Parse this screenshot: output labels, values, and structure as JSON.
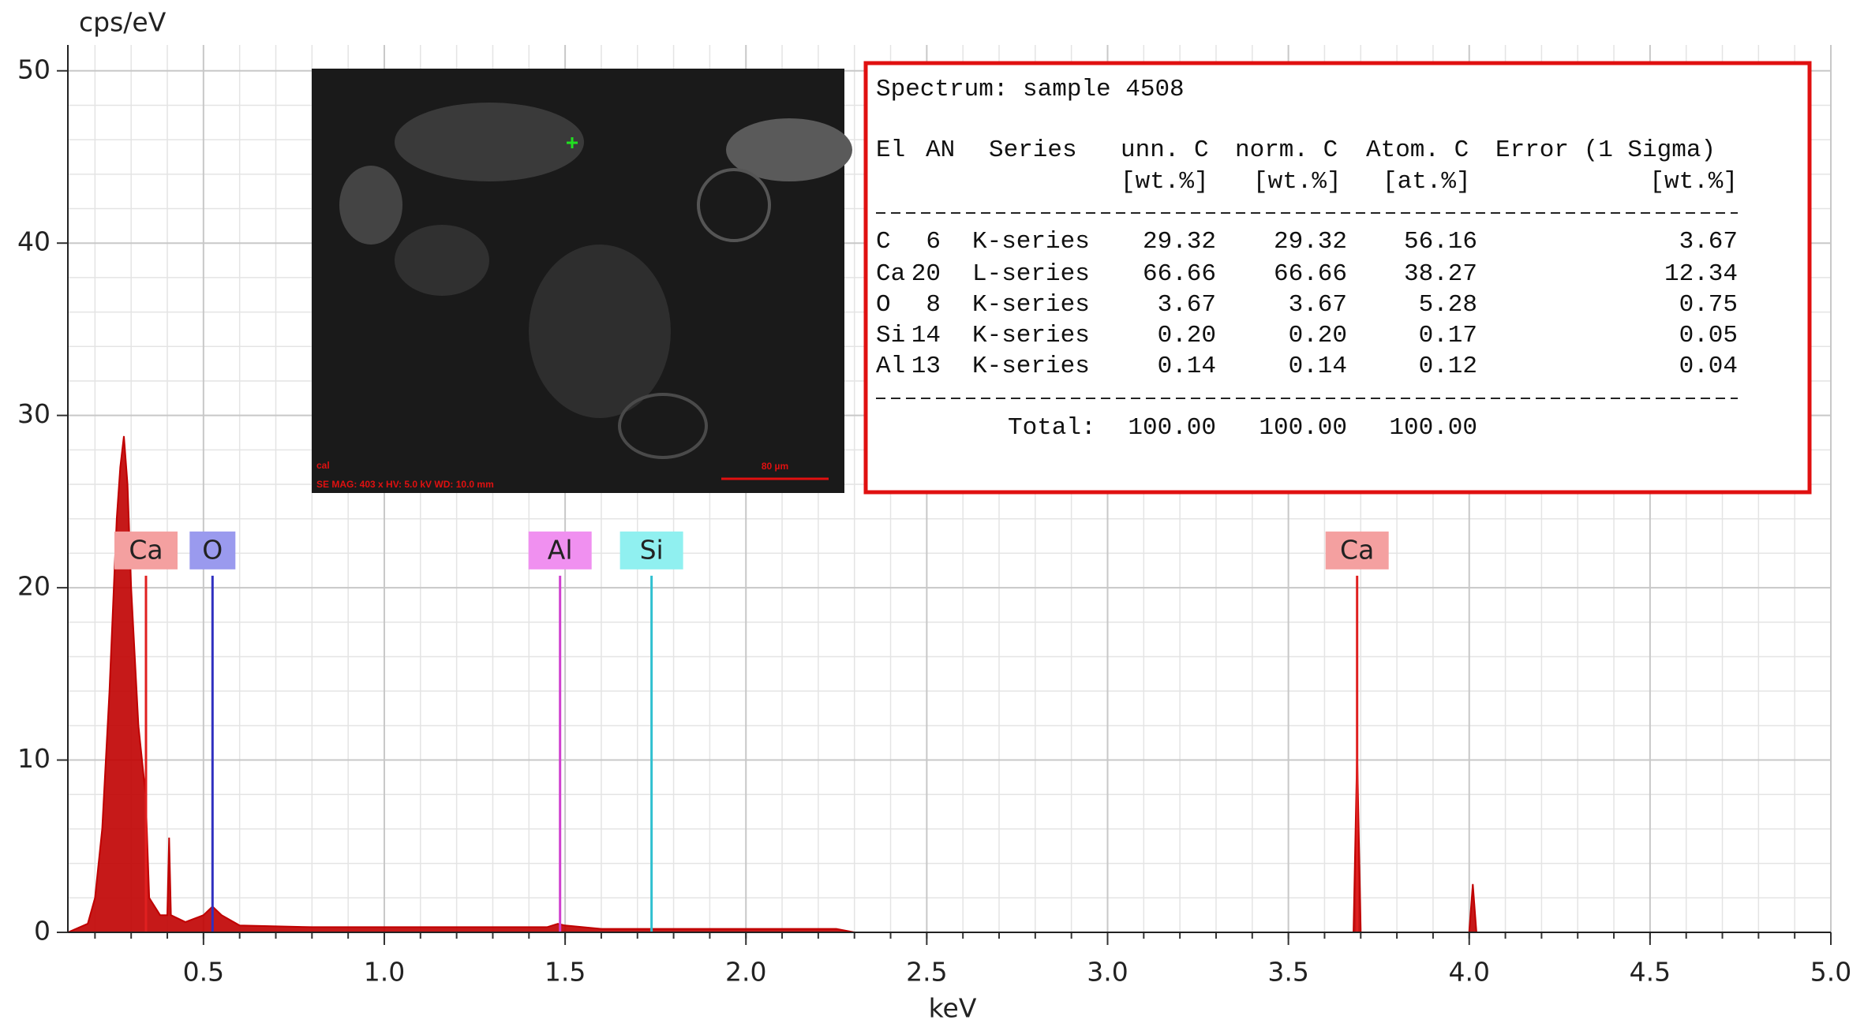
{
  "chart_data": {
    "type": "spectrum",
    "ylabel": "cps/eV",
    "xlabel": "keV",
    "xlim": [
      0.125,
      5.0
    ],
    "ylim": [
      0,
      51.5
    ],
    "xticks": [
      0.5,
      {
        "value": 1,
        "label": "1.0"
      },
      1.5,
      {
        "value": 2,
        "label": "2.0"
      },
      2.5,
      {
        "value": 3,
        "label": "3.0"
      },
      3.5,
      {
        "value": 4,
        "label": "4.0"
      },
      4.5,
      {
        "value": 5,
        "label": "5.0"
      }
    ],
    "yticks": [
      0,
      10,
      20,
      30,
      40,
      50
    ],
    "grid": true,
    "color": "#c00000",
    "x": [
      0.125,
      0.18,
      0.2,
      0.22,
      0.24,
      0.26,
      0.27,
      0.28,
      0.29,
      0.3,
      0.32,
      0.34,
      0.35,
      0.38,
      0.4,
      0.405,
      0.41,
      0.45,
      0.5,
      0.525,
      0.55,
      0.6,
      0.8,
      1.0,
      1.2,
      1.45,
      1.48,
      1.5,
      1.6,
      1.87,
      2.0,
      2.25,
      2.3,
      3.68,
      3.69,
      3.7,
      4.0,
      4.01,
      4.02,
      5.0
    ],
    "values": [
      0,
      0.5,
      2,
      6,
      14,
      24,
      27,
      28.8,
      26,
      20,
      12,
      8,
      2,
      1,
      1,
      5.5,
      1,
      0.6,
      1,
      1.5,
      1,
      0.4,
      0.3,
      0.3,
      0.3,
      0.3,
      0.5,
      0.4,
      0.2,
      0.2,
      0.2,
      0.2,
      0,
      0,
      10.5,
      0,
      0,
      2.8,
      0,
      0
    ],
    "markers": [
      {
        "label": "Ca",
        "x": 0.341,
        "height": 20.7,
        "color": "#e02020",
        "background": "#f4a0a0"
      },
      {
        "label": "O",
        "x": 0.525,
        "height": 20.7,
        "color": "#3030c0",
        "background": "#9a9aee"
      },
      {
        "label": "Al",
        "x": 1.486,
        "height": 20.7,
        "color": "#d040d0",
        "background": "#f090f0"
      },
      {
        "label": "Si",
        "x": 1.739,
        "height": 20.7,
        "color": "#30c0d0",
        "background": "#90f0f0"
      },
      {
        "label": "Ca",
        "x": 3.69,
        "height": 20.7,
        "color": "#e02020",
        "background": "#f4a0a0"
      }
    ],
    "inset_image": {
      "label": "cal",
      "caption": "SE MAG: 403 x HV: 5.0 kV WD: 10.0 mm",
      "scale_bar": "80 µm"
    },
    "inset_table": {
      "title": "Spectrum: sample 4508",
      "header": [
        "El",
        "AN",
        "Series",
        "unn. C",
        "norm. C",
        "Atom. C",
        "Error (1 Sigma)"
      ],
      "units": [
        "[wt.%]",
        "[wt.%]",
        "[at.%]",
        "[wt.%]"
      ],
      "rows": [
        [
          "C",
          "6",
          "K-series",
          "29.32",
          "29.32",
          "56.16",
          "3.67"
        ],
        [
          "Ca",
          "20",
          "L-series",
          "66.66",
          "66.66",
          "38.27",
          "12.34"
        ],
        [
          "O",
          "8",
          "K-series",
          "3.67",
          "3.67",
          "5.28",
          "0.75"
        ],
        [
          "Si",
          "14",
          "K-series",
          "0.20",
          "0.20",
          "0.17",
          "0.05"
        ],
        [
          "Al",
          "13",
          "K-series",
          "0.14",
          "0.14",
          "0.12",
          "0.04"
        ]
      ],
      "total_label": "Total:",
      "totals": [
        "100.00",
        "100.00",
        "100.00"
      ]
    }
  }
}
